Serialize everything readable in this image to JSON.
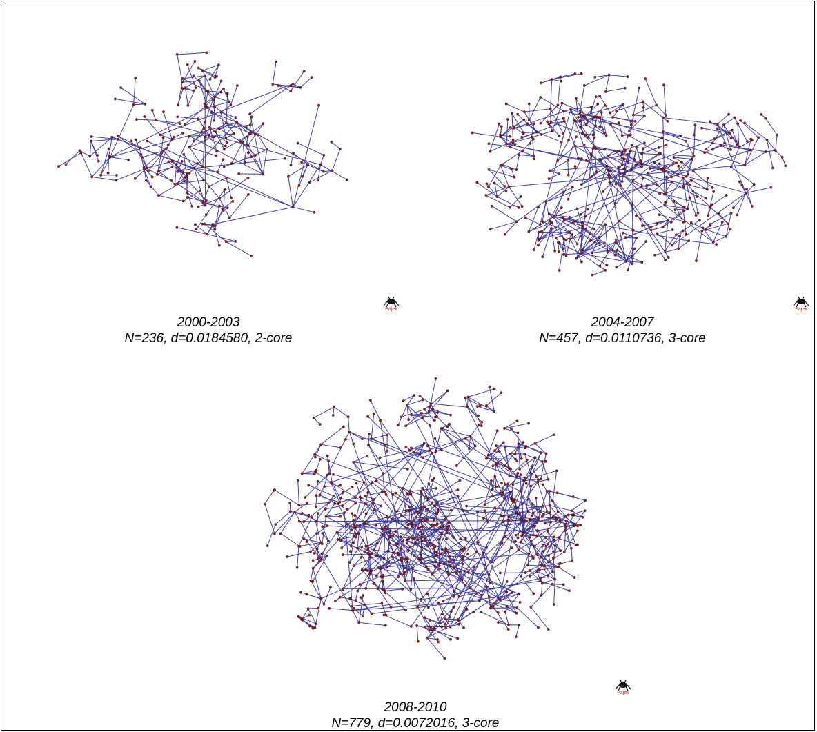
{
  "colors": {
    "edge": "#3c3ca6",
    "node": "#8b1c1c",
    "node_stroke": "#3a0c0c",
    "logo_text": "#d9262d"
  },
  "networks": [
    {
      "period": "2000-2003",
      "stats": "N=236, d=0.0184580, 2-core",
      "nodes": 236,
      "density": 0.018458,
      "core": "2-core",
      "logo_label": "Pajek"
    },
    {
      "period": "2004-2007",
      "stats": "N=457, d=0.0110736, 3-core",
      "nodes": 457,
      "density": 0.0110736,
      "core": "3-core",
      "logo_label": "Pajek"
    },
    {
      "period": "2008-2010",
      "stats": "N=779, d=0.0072016, 3-core",
      "nodes": 779,
      "density": 0.0072016,
      "core": "3-core",
      "logo_label": "Pajek"
    }
  ]
}
